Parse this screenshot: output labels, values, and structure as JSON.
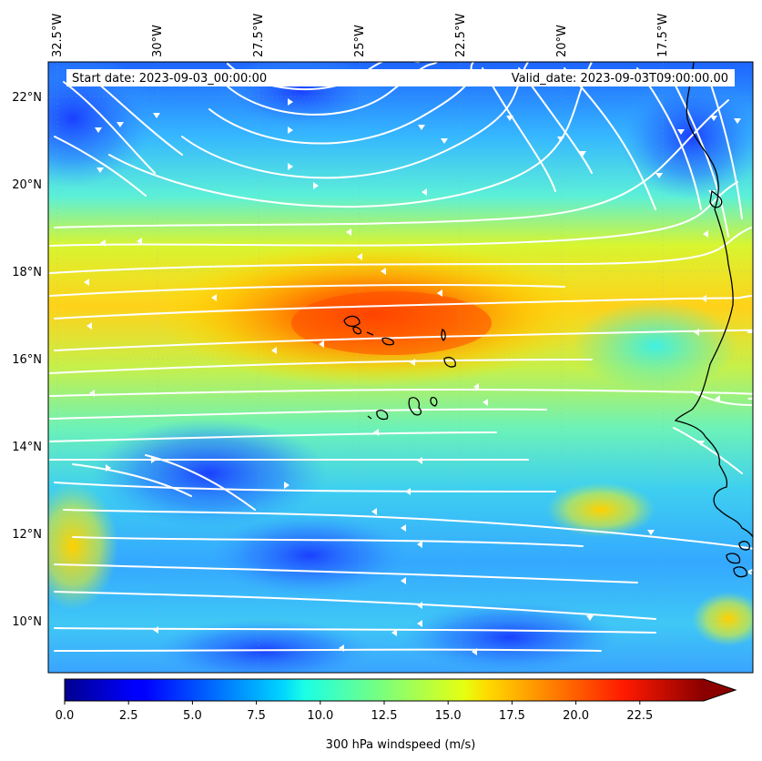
{
  "map": {
    "start_label": "Start date: 2023-09-03_00:00:00",
    "valid_label": "Valid_date: 2023-09-03T09:00:00.00",
    "lon_ticks": [
      "32.5°W",
      "30°W",
      "27.5°W",
      "25°W",
      "22.5°W",
      "20°W",
      "17.5°W"
    ],
    "lat_ticks": [
      "22°N",
      "20°N",
      "18°N",
      "16°N",
      "14°N",
      "12°N",
      "10°N"
    ],
    "extent": {
      "lon_min": -33.0,
      "lon_max": -15.5,
      "lat_min": 8.9,
      "lat_max": 22.8
    }
  },
  "colorbar": {
    "label": "300 hPa windspeed (m/s)",
    "ticks": [
      "0.0",
      "2.5",
      "5.0",
      "7.5",
      "10.0",
      "12.5",
      "15.0",
      "17.5",
      "20.0",
      "22.5"
    ],
    "vmin": 0,
    "vmax": 25,
    "extend": "max",
    "colormap": "jet"
  },
  "colors": {
    "streamline": "#ffffff",
    "coastline": "#000000"
  }
}
